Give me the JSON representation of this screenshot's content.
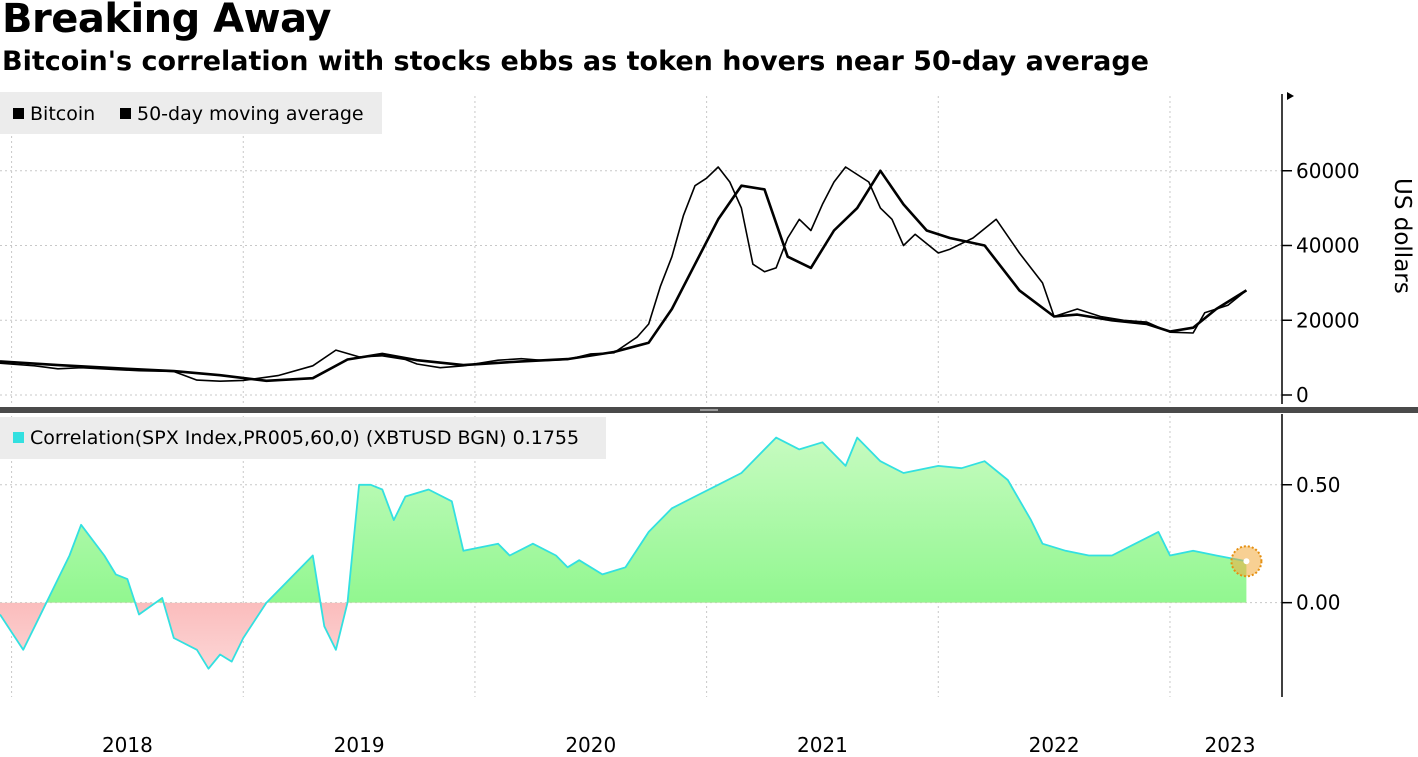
{
  "title": "Breaking Away",
  "subtitle": "Bitcoin's correlation with stocks ebbs as token hovers near 50-day average",
  "colors": {
    "price_line": "#000000",
    "average_line": "#000000",
    "positive_fill": "#7cf57c",
    "negative_fill": "#f77c7c",
    "correlation_line": "#33e0e0",
    "marker": "#f2a93a"
  },
  "chart_data": [
    {
      "type": "line",
      "legend": [
        "Bitcoin",
        "50-day moving average"
      ],
      "legend_placement": "top-left",
      "ylabel": "US dollars",
      "ylim": [
        -1000,
        80000
      ],
      "yticks": [
        "60000",
        "40000",
        "20000",
        "0"
      ],
      "grid": true,
      "series": [
        {
          "name": "Bitcoin",
          "x": [
            2017.95,
            2018.1,
            2018.2,
            2018.3,
            2018.45,
            2018.55,
            2018.7,
            2018.8,
            2018.9,
            2019.0,
            2019.15,
            2019.3,
            2019.4,
            2019.5,
            2019.6,
            2019.7,
            2019.75,
            2019.85,
            2019.95,
            2020.1,
            2020.2,
            2020.3,
            2020.4,
            2020.5,
            2020.6,
            2020.7,
            2020.75,
            2020.8,
            2020.85,
            2020.9,
            2020.95,
            2021.0,
            2021.05,
            2021.1,
            2021.15,
            2021.2,
            2021.25,
            2021.3,
            2021.35,
            2021.4,
            2021.45,
            2021.5,
            2021.55,
            2021.6,
            2021.7,
            2021.75,
            2021.8,
            2021.85,
            2021.9,
            2022.0,
            2022.05,
            2022.15,
            2022.25,
            2022.35,
            2022.45,
            2022.5,
            2022.6,
            2022.7,
            2022.8,
            2022.9,
            2023.0,
            2023.1,
            2023.15,
            2023.25,
            2023.33
          ],
          "y": [
            8500,
            7800,
            7000,
            7300,
            6800,
            6500,
            6300,
            4000,
            3700,
            3900,
            5200,
            7800,
            12000,
            10200,
            10500,
            9500,
            8300,
            7300,
            7800,
            9300,
            9700,
            9200,
            9500,
            11000,
            11300,
            15500,
            19000,
            29000,
            37000,
            48000,
            56000,
            58000,
            61000,
            57000,
            50000,
            35000,
            33000,
            34000,
            42000,
            47000,
            44000,
            51000,
            57000,
            61000,
            57000,
            50000,
            47000,
            40000,
            43000,
            38000,
            39000,
            42000,
            47000,
            38000,
            30000,
            21000,
            23000,
            21000,
            20000,
            19500,
            16800,
            16600,
            22000,
            24000,
            28000
          ]
        },
        {
          "name": "50-day moving average",
          "x": [
            2017.95,
            2018.2,
            2018.5,
            2018.7,
            2018.9,
            2019.1,
            2019.3,
            2019.45,
            2019.6,
            2019.75,
            2019.95,
            2020.2,
            2020.4,
            2020.6,
            2020.75,
            2020.85,
            2020.95,
            2021.05,
            2021.15,
            2021.25,
            2021.35,
            2021.45,
            2021.55,
            2021.65,
            2021.75,
            2021.85,
            2021.95,
            2022.05,
            2022.2,
            2022.35,
            2022.5,
            2022.6,
            2022.75,
            2022.9,
            2023.0,
            2023.1,
            2023.2,
            2023.33
          ],
          "y": [
            9000,
            8000,
            7000,
            6400,
            5300,
            3800,
            4500,
            9500,
            11000,
            9300,
            8000,
            9000,
            9600,
            11500,
            14000,
            23000,
            35000,
            47000,
            56000,
            55000,
            37000,
            34000,
            44000,
            50000,
            60000,
            51000,
            44000,
            42000,
            40000,
            28000,
            21000,
            21500,
            20000,
            19000,
            17000,
            18000,
            23000,
            28000
          ]
        }
      ]
    },
    {
      "type": "area",
      "legend": [
        "Correlation(SPX Index,PR005,60,0) (XBTUSD BGN) 0.1755"
      ],
      "legend_placement": "top-left",
      "ylim": [
        -0.4,
        0.8
      ],
      "yticks": [
        "0.50",
        "0.00"
      ],
      "grid": true,
      "series": [
        {
          "name": "Correlation(SPX Index,PR005,60,0) (XBTUSD BGN) 0.1755",
          "x": [
            2017.95,
            2018.05,
            2018.1,
            2018.2,
            2018.25,
            2018.3,
            2018.4,
            2018.45,
            2018.5,
            2018.55,
            2018.65,
            2018.7,
            2018.8,
            2018.85,
            2018.9,
            2018.95,
            2019.0,
            2019.1,
            2019.2,
            2019.3,
            2019.35,
            2019.4,
            2019.45,
            2019.5,
            2019.55,
            2019.6,
            2019.65,
            2019.7,
            2019.8,
            2019.9,
            2019.95,
            2020.1,
            2020.15,
            2020.25,
            2020.35,
            2020.4,
            2020.45,
            2020.55,
            2020.65,
            2020.75,
            2020.85,
            2020.95,
            2021.05,
            2021.15,
            2021.2,
            2021.3,
            2021.4,
            2021.5,
            2021.6,
            2021.65,
            2021.75,
            2021.85,
            2022.0,
            2022.1,
            2022.2,
            2022.3,
            2022.4,
            2022.45,
            2022.55,
            2022.65,
            2022.75,
            2022.85,
            2022.95,
            2023.0,
            2023.1,
            2023.2,
            2023.33
          ],
          "y": [
            -0.05,
            -0.2,
            -0.1,
            0.1,
            0.2,
            0.33,
            0.2,
            0.12,
            0.1,
            -0.05,
            0.02,
            -0.15,
            -0.2,
            -0.28,
            -0.22,
            -0.25,
            -0.15,
            0.0,
            0.1,
            0.2,
            -0.1,
            -0.2,
            0.0,
            0.5,
            0.5,
            0.48,
            0.35,
            0.45,
            0.48,
            0.43,
            0.22,
            0.25,
            0.2,
            0.25,
            0.2,
            0.15,
            0.18,
            0.12,
            0.15,
            0.3,
            0.4,
            0.45,
            0.5,
            0.55,
            0.6,
            0.7,
            0.65,
            0.68,
            0.58,
            0.7,
            0.6,
            0.55,
            0.58,
            0.57,
            0.6,
            0.52,
            0.35,
            0.25,
            0.22,
            0.2,
            0.2,
            0.25,
            0.3,
            0.2,
            0.22,
            0.2,
            0.1755
          ]
        }
      ]
    }
  ],
  "xaxis": {
    "ticks": [
      "2018",
      "2019",
      "2020",
      "2021",
      "2022",
      "2023"
    ],
    "range": [
      2017.95,
      2023.38
    ]
  }
}
